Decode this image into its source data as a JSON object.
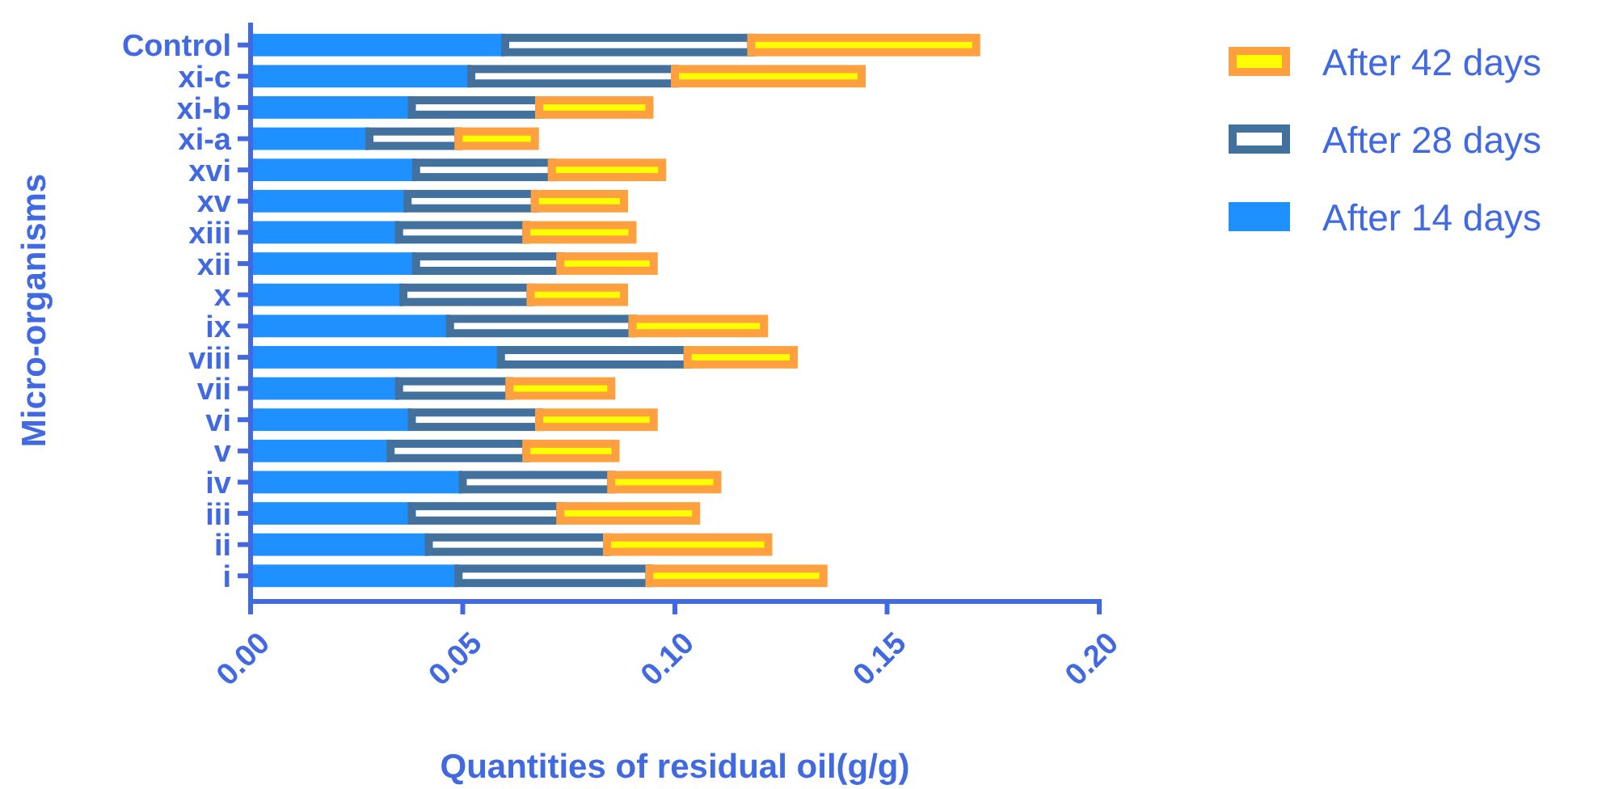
{
  "chart_data": {
    "type": "bar",
    "orientation": "horizontal",
    "stacked": true,
    "xlabel": "Quantities of residual oil(g/g)",
    "ylabel": "Micro-organisms",
    "categories": [
      "Control",
      "xi-c",
      "xi-b",
      "xi-a",
      "xvi",
      "xv",
      "xiii",
      "xii",
      "x",
      "ix",
      "viii",
      "vii",
      "vi",
      "v",
      "iv",
      "iii",
      "ii",
      "i"
    ],
    "series": [
      {
        "name": "After 14 days",
        "color": "#1e90ff",
        "values": [
          0.06,
          0.052,
          0.038,
          0.028,
          0.039,
          0.037,
          0.035,
          0.039,
          0.036,
          0.047,
          0.059,
          0.035,
          0.038,
          0.033,
          0.05,
          0.038,
          0.042,
          0.049
        ]
      },
      {
        "name": "After 28 days",
        "color": "#41719c",
        "values": [
          0.058,
          0.048,
          0.03,
          0.021,
          0.032,
          0.03,
          0.03,
          0.034,
          0.03,
          0.043,
          0.044,
          0.026,
          0.03,
          0.032,
          0.035,
          0.035,
          0.042,
          0.045
        ]
      },
      {
        "name": "After 42 days",
        "color": "#ffa040",
        "values": [
          0.053,
          0.044,
          0.026,
          0.018,
          0.026,
          0.021,
          0.025,
          0.022,
          0.022,
          0.031,
          0.025,
          0.024,
          0.027,
          0.021,
          0.025,
          0.032,
          0.038,
          0.041
        ]
      }
    ],
    "xlim": [
      0,
      0.2
    ],
    "xticks": [
      {
        "value": 0,
        "label": "0.00"
      },
      0.05,
      {
        "value": 0.1,
        "label": "0.10"
      },
      0.15,
      {
        "value": 0.2,
        "label": "0.20"
      }
    ],
    "grid": false,
    "legend": "top right"
  }
}
